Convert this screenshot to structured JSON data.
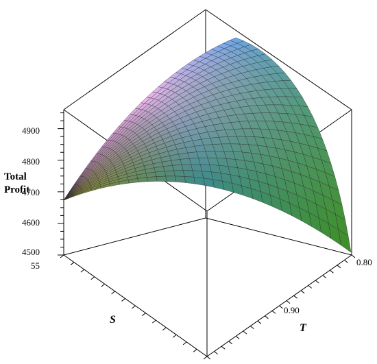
{
  "chart_data": {
    "type": "surface3d",
    "title": "",
    "zlabel_lines": [
      "Total",
      "Profit"
    ],
    "xlabel": "T",
    "ylabel": "S",
    "z_ticks": [
      4500,
      4600,
      4700,
      4800,
      4900
    ],
    "z_tick_labels": [
      "4500",
      "4600",
      "4700",
      "4800",
      "4900"
    ],
    "zlim": [
      4500,
      4960
    ],
    "x_ticks_labeled": [
      0.8,
      0.9
    ],
    "x_tick_labels": [
      "0.80",
      "0.90"
    ],
    "y_ticks_labeled": [
      55
    ],
    "y_tick_labels": [
      "55"
    ],
    "surface": {
      "description_values": "approximate profit surface: ridge along S, peak ~4955",
      "ridge_peak_profit": 4955,
      "corner_low_left": 4665,
      "corner_low_front": 4500,
      "corner_low_right": 4520
    },
    "colors": {
      "ridge_pink": "#f4b8f0",
      "left_purple": "#a2689e",
      "blue": "#6aa6f0",
      "teal": "#3b8a8a",
      "green": "#3f8f25",
      "olive": "#8f8a22",
      "grid_line": "#2a2a2a",
      "box_line": "#000000"
    }
  }
}
